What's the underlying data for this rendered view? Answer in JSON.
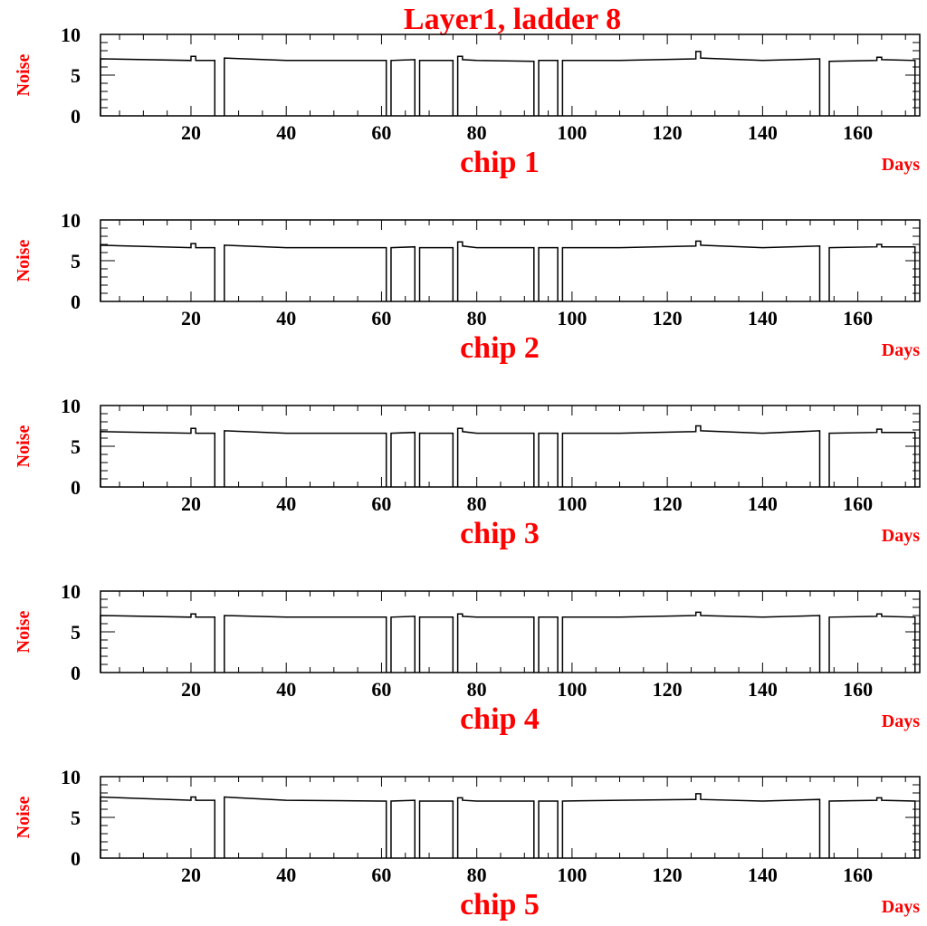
{
  "figure_title": "Layer1, ladder 8",
  "colors": {
    "labels": "#ff0000",
    "axes": "#000000",
    "line": "#000000"
  },
  "chart_data": [
    {
      "type": "line",
      "title": "chip 1",
      "xlabel": "Days",
      "ylabel": "Noise",
      "xlim": [
        1,
        173
      ],
      "ylim": [
        0,
        10
      ],
      "x_ticks": [
        20,
        40,
        60,
        80,
        100,
        120,
        140,
        160
      ],
      "y_ticks": [
        0,
        5,
        10
      ],
      "segments": [
        {
          "x": [
            1,
            20,
            20,
            21,
            21,
            25
          ],
          "y": [
            7.0,
            6.8,
            7.3,
            7.3,
            6.8,
            6.8
          ]
        },
        {
          "x": [
            27,
            40,
            60,
            61
          ],
          "y": [
            7.1,
            6.8,
            6.8,
            6.8
          ]
        },
        {
          "x": [
            62,
            67
          ],
          "y": [
            6.8,
            6.9
          ]
        },
        {
          "x": [
            68,
            75
          ],
          "y": [
            6.8,
            6.8
          ]
        },
        {
          "x": [
            76,
            77,
            77,
            80,
            92
          ],
          "y": [
            7.3,
            7.3,
            6.9,
            6.8,
            6.7
          ]
        },
        {
          "x": [
            93,
            97
          ],
          "y": [
            6.8,
            6.8
          ]
        },
        {
          "x": [
            98,
            110,
            126,
            126,
            127,
            127,
            140,
            152
          ],
          "y": [
            6.8,
            6.8,
            7.0,
            7.9,
            7.9,
            7.1,
            6.8,
            7.0
          ]
        },
        {
          "x": [
            154,
            164,
            164,
            165,
            165,
            172
          ],
          "y": [
            6.7,
            6.8,
            7.2,
            7.2,
            6.9,
            6.8
          ]
        }
      ]
    },
    {
      "type": "line",
      "title": "chip 2",
      "xlabel": "Days",
      "ylabel": "Noise",
      "xlim": [
        1,
        173
      ],
      "ylim": [
        0,
        10
      ],
      "x_ticks": [
        20,
        40,
        60,
        80,
        100,
        120,
        140,
        160
      ],
      "y_ticks": [
        0,
        5,
        10
      ],
      "segments": [
        {
          "x": [
            1,
            20,
            20,
            21,
            21,
            25
          ],
          "y": [
            6.9,
            6.6,
            7.1,
            7.1,
            6.6,
            6.6
          ]
        },
        {
          "x": [
            27,
            40,
            60,
            61
          ],
          "y": [
            6.9,
            6.6,
            6.6,
            6.6
          ]
        },
        {
          "x": [
            62,
            67
          ],
          "y": [
            6.6,
            6.7
          ]
        },
        {
          "x": [
            68,
            75
          ],
          "y": [
            6.6,
            6.6
          ]
        },
        {
          "x": [
            76,
            77,
            77,
            80,
            92
          ],
          "y": [
            7.3,
            7.3,
            6.8,
            6.6,
            6.6
          ]
        },
        {
          "x": [
            93,
            97
          ],
          "y": [
            6.6,
            6.6
          ]
        },
        {
          "x": [
            98,
            110,
            126,
            126,
            127,
            127,
            140,
            152
          ],
          "y": [
            6.6,
            6.6,
            6.8,
            7.4,
            7.4,
            6.9,
            6.6,
            6.8
          ]
        },
        {
          "x": [
            154,
            164,
            164,
            165,
            165,
            172
          ],
          "y": [
            6.6,
            6.7,
            7.0,
            7.0,
            6.7,
            6.7
          ]
        }
      ]
    },
    {
      "type": "line",
      "title": "chip 3",
      "xlabel": "Days",
      "ylabel": "Noise",
      "xlim": [
        1,
        173
      ],
      "ylim": [
        0,
        10
      ],
      "x_ticks": [
        20,
        40,
        60,
        80,
        100,
        120,
        140,
        160
      ],
      "y_ticks": [
        0,
        5,
        10
      ],
      "segments": [
        {
          "x": [
            1,
            20,
            20,
            21,
            21,
            25
          ],
          "y": [
            6.8,
            6.6,
            7.2,
            7.2,
            6.6,
            6.6
          ]
        },
        {
          "x": [
            27,
            40,
            60,
            61
          ],
          "y": [
            6.9,
            6.6,
            6.6,
            6.6
          ]
        },
        {
          "x": [
            62,
            67
          ],
          "y": [
            6.6,
            6.7
          ]
        },
        {
          "x": [
            68,
            75
          ],
          "y": [
            6.6,
            6.6
          ]
        },
        {
          "x": [
            76,
            77,
            77,
            80,
            92
          ],
          "y": [
            7.2,
            7.2,
            6.8,
            6.6,
            6.6
          ]
        },
        {
          "x": [
            93,
            97
          ],
          "y": [
            6.6,
            6.6
          ]
        },
        {
          "x": [
            98,
            110,
            126,
            126,
            127,
            127,
            140,
            152
          ],
          "y": [
            6.6,
            6.6,
            6.8,
            7.5,
            7.5,
            6.9,
            6.6,
            6.9
          ]
        },
        {
          "x": [
            154,
            164,
            164,
            165,
            165,
            172
          ],
          "y": [
            6.6,
            6.7,
            7.1,
            7.1,
            6.7,
            6.7
          ]
        }
      ]
    },
    {
      "type": "line",
      "title": "chip 4",
      "xlabel": "Days",
      "ylabel": "Noise",
      "xlim": [
        1,
        173
      ],
      "ylim": [
        0,
        10
      ],
      "x_ticks": [
        20,
        40,
        60,
        80,
        100,
        120,
        140,
        160
      ],
      "y_ticks": [
        0,
        5,
        10
      ],
      "segments": [
        {
          "x": [
            1,
            20,
            20,
            21,
            21,
            25
          ],
          "y": [
            7.0,
            6.8,
            7.2,
            7.2,
            6.8,
            6.8
          ]
        },
        {
          "x": [
            27,
            40,
            60,
            61
          ],
          "y": [
            7.0,
            6.8,
            6.8,
            6.8
          ]
        },
        {
          "x": [
            62,
            67
          ],
          "y": [
            6.8,
            6.9
          ]
        },
        {
          "x": [
            68,
            75
          ],
          "y": [
            6.8,
            6.8
          ]
        },
        {
          "x": [
            76,
            77,
            77,
            80,
            92
          ],
          "y": [
            7.2,
            7.2,
            6.9,
            6.8,
            6.8
          ]
        },
        {
          "x": [
            93,
            97
          ],
          "y": [
            6.8,
            6.8
          ]
        },
        {
          "x": [
            98,
            110,
            126,
            126,
            127,
            127,
            140,
            152
          ],
          "y": [
            6.8,
            6.8,
            7.0,
            7.4,
            7.4,
            7.0,
            6.8,
            7.0
          ]
        },
        {
          "x": [
            154,
            164,
            164,
            165,
            165,
            172
          ],
          "y": [
            6.8,
            6.9,
            7.2,
            7.2,
            6.9,
            6.8
          ]
        }
      ]
    },
    {
      "type": "line",
      "title": "chip 5",
      "xlabel": "Days",
      "ylabel": "Noise",
      "xlim": [
        1,
        173
      ],
      "ylim": [
        0,
        10
      ],
      "x_ticks": [
        20,
        40,
        60,
        80,
        100,
        120,
        140,
        160
      ],
      "y_ticks": [
        0,
        5,
        10
      ],
      "segments": [
        {
          "x": [
            1,
            20,
            20,
            21,
            21,
            25
          ],
          "y": [
            7.5,
            7.1,
            7.5,
            7.5,
            7.1,
            7.1
          ]
        },
        {
          "x": [
            27,
            40,
            60,
            61
          ],
          "y": [
            7.5,
            7.1,
            7.0,
            7.0
          ]
        },
        {
          "x": [
            62,
            67
          ],
          "y": [
            7.0,
            7.1
          ]
        },
        {
          "x": [
            68,
            75
          ],
          "y": [
            7.0,
            7.0
          ]
        },
        {
          "x": [
            76,
            77,
            77,
            80,
            92
          ],
          "y": [
            7.4,
            7.4,
            7.1,
            7.0,
            7.0
          ]
        },
        {
          "x": [
            93,
            97
          ],
          "y": [
            7.0,
            7.0
          ]
        },
        {
          "x": [
            98,
            110,
            126,
            126,
            127,
            127,
            140,
            152
          ],
          "y": [
            7.0,
            7.1,
            7.2,
            7.9,
            7.9,
            7.2,
            7.0,
            7.2
          ]
        },
        {
          "x": [
            154,
            164,
            164,
            165,
            165,
            172
          ],
          "y": [
            7.0,
            7.1,
            7.4,
            7.4,
            7.1,
            7.0
          ]
        }
      ]
    }
  ]
}
